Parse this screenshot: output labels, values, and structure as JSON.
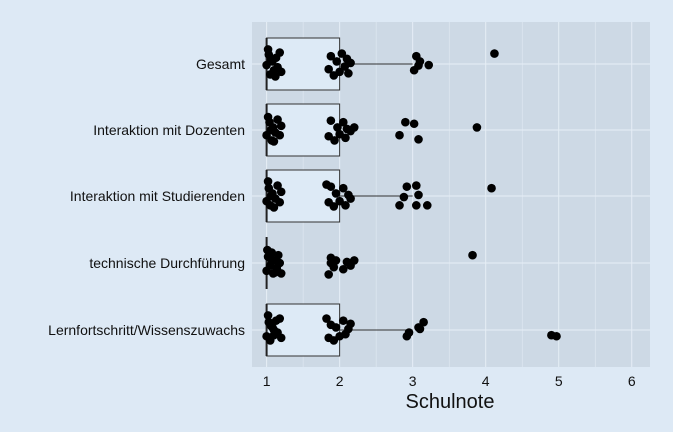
{
  "chart_data": {
    "type": "boxplot",
    "orientation": "horizontal",
    "xlabel": "Schulnote",
    "xlim": [
      0.8,
      6.25
    ],
    "xticks": [
      "1",
      "2",
      "3",
      "4",
      "5",
      "6"
    ],
    "grid": true,
    "legend": "none",
    "colors": {
      "page_background": "#dde9f5",
      "panel_background": "#cdd9e5",
      "box_fill": "#ddeaf6",
      "gridline": "#e6eef6",
      "point": "#000000",
      "text": "#111111"
    },
    "categories": [
      "Gesamt",
      "Interaktion mit Dozenten",
      "Interaktion mit Studierenden",
      "technische Durchführung",
      "Lernfortschritt/Wissenszuwachs"
    ],
    "boxes": [
      {
        "category": "Gesamt",
        "whisker_low": 1,
        "q1": 1,
        "median": 1,
        "q3": 2,
        "whisker_high": 3
      },
      {
        "category": "Interaktion mit Dozenten",
        "whisker_low": 1,
        "q1": 1,
        "median": 1,
        "q3": 2,
        "whisker_high": 2
      },
      {
        "category": "Interaktion mit Studierenden",
        "whisker_low": 1,
        "q1": 1,
        "median": 1,
        "q3": 2,
        "whisker_high": 3
      },
      {
        "category": "technische Durchführung",
        "whisker_low": 1,
        "q1": 1,
        "median": 1,
        "q3": 1,
        "whisker_high": 1
      },
      {
        "category": "Lernfortschritt/Wissenszuwachs",
        "whisker_low": 1,
        "q1": 1,
        "median": 1,
        "q3": 2,
        "whisker_high": 3
      }
    ],
    "points": [
      [
        1.0,
        0.02
      ],
      [
        1.03,
        -0.18
      ],
      [
        1.05,
        0.2
      ],
      [
        1.08,
        -0.05
      ],
      [
        1.1,
        0.12
      ],
      [
        1.13,
        -0.12
      ],
      [
        1.15,
        0.06
      ],
      [
        1.18,
        -0.22
      ],
      [
        1.2,
        0.15
      ],
      [
        1.02,
        -0.28
      ],
      [
        1.12,
        0.24
      ],
      [
        1.06,
        -0.08
      ],
      [
        1.85,
        0.1
      ],
      [
        1.88,
        -0.15
      ],
      [
        1.92,
        0.22
      ],
      [
        1.96,
        -0.05
      ],
      [
        2.0,
        0.15
      ],
      [
        2.03,
        -0.2
      ],
      [
        2.07,
        0.05
      ],
      [
        2.1,
        -0.1
      ],
      [
        2.12,
        0.18
      ],
      [
        2.15,
        -0.02
      ],
      [
        3.02,
        0.12
      ],
      [
        3.05,
        -0.15
      ],
      [
        3.08,
        0.03
      ],
      [
        3.1,
        -0.05
      ],
      [
        3.22,
        0.02
      ],
      [
        4.12,
        -0.2
      ]
    ],
    "points_by_category": [
      [
        [
          1.0,
          0.02
        ],
        [
          1.03,
          -0.18
        ],
        [
          1.05,
          0.2
        ],
        [
          1.08,
          -0.05
        ],
        [
          1.1,
          0.12
        ],
        [
          1.13,
          -0.12
        ],
        [
          1.15,
          0.06
        ],
        [
          1.18,
          -0.22
        ],
        [
          1.2,
          0.15
        ],
        [
          1.02,
          -0.28
        ],
        [
          1.12,
          0.24
        ],
        [
          1.06,
          -0.08
        ],
        [
          1.85,
          0.1
        ],
        [
          1.88,
          -0.15
        ],
        [
          1.92,
          0.22
        ],
        [
          1.96,
          -0.05
        ],
        [
          2.0,
          0.15
        ],
        [
          2.03,
          -0.2
        ],
        [
          2.07,
          0.05
        ],
        [
          2.1,
          -0.1
        ],
        [
          2.12,
          0.18
        ],
        [
          2.15,
          -0.02
        ],
        [
          3.02,
          0.12
        ],
        [
          3.05,
          -0.15
        ],
        [
          3.08,
          0.03
        ],
        [
          3.1,
          -0.05
        ],
        [
          3.22,
          0.02
        ],
        [
          4.12,
          -0.2
        ]
      ],
      [
        [
          1.0,
          0.1
        ],
        [
          1.04,
          -0.15
        ],
        [
          1.07,
          0.2
        ],
        [
          1.09,
          -0.05
        ],
        [
          1.12,
          0.05
        ],
        [
          1.15,
          -0.2
        ],
        [
          1.18,
          0.1
        ],
        [
          1.2,
          -0.08
        ],
        [
          1.02,
          -0.25
        ],
        [
          1.1,
          0.22
        ],
        [
          1.06,
          0.0
        ],
        [
          1.85,
          0.12
        ],
        [
          1.88,
          -0.18
        ],
        [
          1.93,
          0.2
        ],
        [
          1.97,
          -0.05
        ],
        [
          2.0,
          0.08
        ],
        [
          2.05,
          -0.15
        ],
        [
          2.08,
          0.15
        ],
        [
          2.1,
          -0.02
        ],
        [
          2.15,
          0.02
        ],
        [
          2.2,
          -0.05
        ],
        [
          2.82,
          0.1
        ],
        [
          2.9,
          -0.15
        ],
        [
          3.02,
          -0.12
        ],
        [
          3.08,
          0.18
        ],
        [
          3.88,
          -0.05
        ]
      ],
      [
        [
          1.0,
          0.1
        ],
        [
          1.03,
          -0.15
        ],
        [
          1.05,
          0.18
        ],
        [
          1.08,
          -0.05
        ],
        [
          1.12,
          0.05
        ],
        [
          1.15,
          -0.2
        ],
        [
          1.18,
          0.12
        ],
        [
          1.2,
          -0.08
        ],
        [
          1.02,
          -0.28
        ],
        [
          1.1,
          0.22
        ],
        [
          1.06,
          0.0
        ],
        [
          1.85,
          0.12
        ],
        [
          1.88,
          -0.18
        ],
        [
          1.92,
          0.2
        ],
        [
          1.95,
          -0.05
        ],
        [
          2.0,
          0.1
        ],
        [
          2.05,
          -0.15
        ],
        [
          2.08,
          0.18
        ],
        [
          2.12,
          -0.02
        ],
        [
          2.15,
          0.05
        ],
        [
          1.82,
          -0.22
        ],
        [
          2.82,
          0.18
        ],
        [
          2.88,
          0.02
        ],
        [
          2.92,
          -0.18
        ],
        [
          3.05,
          0.18
        ],
        [
          3.08,
          -0.02
        ],
        [
          3.05,
          -0.2
        ],
        [
          3.2,
          0.18
        ],
        [
          4.08,
          -0.15
        ]
      ],
      [
        [
          1.0,
          0.15
        ],
        [
          1.02,
          -0.12
        ],
        [
          1.05,
          0.05
        ],
        [
          1.07,
          -0.2
        ],
        [
          1.09,
          0.2
        ],
        [
          1.11,
          -0.05
        ],
        [
          1.14,
          0.1
        ],
        [
          1.16,
          -0.15
        ],
        [
          1.18,
          0.0
        ],
        [
          1.2,
          0.2
        ],
        [
          1.01,
          -0.25
        ],
        [
          1.12,
          0.18
        ],
        [
          1.06,
          -0.08
        ],
        [
          1.85,
          0.22
        ],
        [
          1.88,
          -0.1
        ],
        [
          1.92,
          0.08
        ],
        [
          1.95,
          -0.05
        ],
        [
          2.05,
          0.12
        ],
        [
          2.1,
          -0.02
        ],
        [
          2.15,
          0.05
        ],
        [
          2.2,
          -0.05
        ],
        [
          1.88,
          0.0
        ],
        [
          3.82,
          -0.15
        ]
      ],
      [
        [
          1.0,
          0.12
        ],
        [
          1.03,
          -0.15
        ],
        [
          1.05,
          0.2
        ],
        [
          1.08,
          -0.05
        ],
        [
          1.1,
          0.1
        ],
        [
          1.13,
          -0.18
        ],
        [
          1.15,
          0.05
        ],
        [
          1.18,
          -0.22
        ],
        [
          1.2,
          0.15
        ],
        [
          1.02,
          -0.28
        ],
        [
          1.1,
          0.0
        ],
        [
          1.06,
          -0.08
        ],
        [
          1.85,
          0.15
        ],
        [
          1.88,
          -0.1
        ],
        [
          1.92,
          0.2
        ],
        [
          1.95,
          -0.05
        ],
        [
          2.0,
          0.12
        ],
        [
          2.05,
          -0.18
        ],
        [
          2.08,
          0.08
        ],
        [
          2.12,
          -0.02
        ],
        [
          2.15,
          -0.12
        ],
        [
          1.82,
          -0.22
        ],
        [
          2.92,
          0.12
        ],
        [
          2.95,
          0.05
        ],
        [
          3.08,
          -0.05
        ],
        [
          3.1,
          -0.02
        ],
        [
          3.15,
          -0.15
        ],
        [
          4.9,
          0.1
        ],
        [
          4.97,
          0.12
        ]
      ]
    ]
  }
}
